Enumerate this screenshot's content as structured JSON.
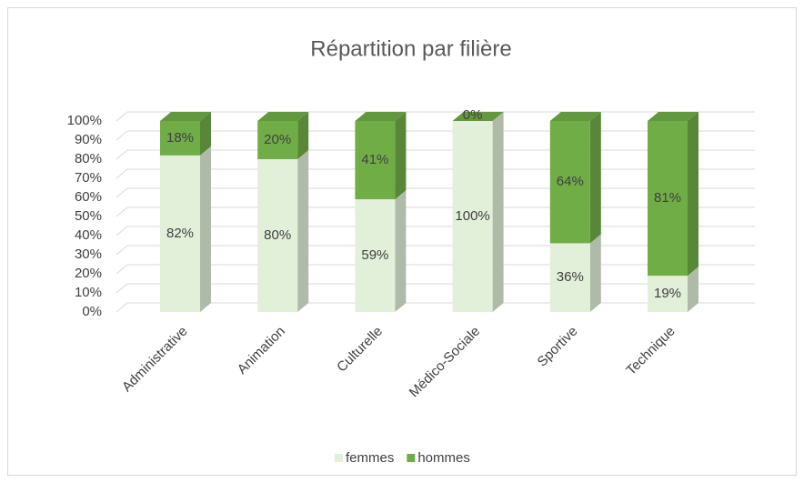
{
  "chart_data": {
    "type": "bar3d_stacked",
    "title": "Répartition par filière",
    "categories": [
      "Administrative",
      "Animation",
      "Culturelle",
      "Médico-Sociale",
      "Sportive",
      "Technique"
    ],
    "series": [
      {
        "name": "femmes",
        "color": "#e2efd9",
        "values": [
          82,
          80,
          59,
          100,
          36,
          19
        ],
        "value_labels": [
          "82%",
          "80%",
          "59%",
          "100%",
          "36%",
          "19%"
        ]
      },
      {
        "name": "hommes",
        "color": "#70ad47",
        "values": [
          18,
          20,
          41,
          0,
          64,
          81
        ],
        "value_labels": [
          "18%",
          "20%",
          "41%",
          "0%",
          "64%",
          "81%"
        ]
      }
    ],
    "ylim": [
      0,
      100
    ],
    "yticks": [
      {
        "value": 0,
        "label": "0%"
      },
      {
        "value": 10,
        "label": "10%"
      },
      {
        "value": 20,
        "label": "20%"
      },
      {
        "value": 30,
        "label": "30%"
      },
      {
        "value": 40,
        "label": "40%"
      },
      {
        "value": 50,
        "label": "50%"
      },
      {
        "value": 60,
        "label": "60%"
      },
      {
        "value": 70,
        "label": "70%"
      },
      {
        "value": 80,
        "label": "80%"
      },
      {
        "value": 90,
        "label": "90%"
      },
      {
        "value": 100,
        "label": "100%"
      }
    ],
    "grid": true,
    "legend": "bottom"
  }
}
